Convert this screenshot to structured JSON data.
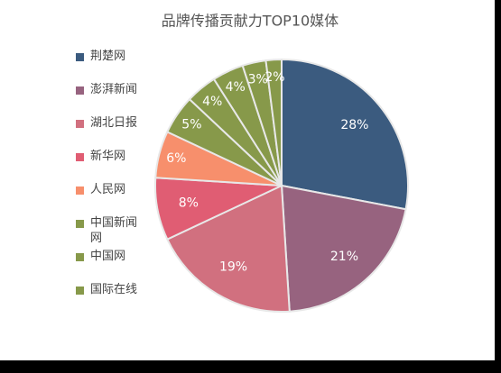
{
  "chart_data": {
    "type": "pie",
    "title": "品牌传播贡献力TOP10媒体",
    "categories": [
      "荆楚网",
      "澎湃新闻",
      "湖北日报",
      "新华网",
      "人民网",
      "中国新闻网",
      "中国网",
      "国际在线",
      null,
      null
    ],
    "values": [
      28,
      21,
      19,
      8,
      6,
      5,
      4,
      4,
      3,
      2
    ],
    "value_labels": [
      "28%",
      "21%",
      "19%",
      "8%",
      "6%",
      "5%",
      "4%",
      "4%",
      "3%",
      "2%"
    ],
    "colors": [
      "#3b5b7f",
      "#97637f",
      "#d1707f",
      "#e05d73",
      "#f78f6c",
      "#87994a",
      "#87994a",
      "#87994a",
      "#87994a",
      "#87994a"
    ],
    "legend": "left"
  }
}
